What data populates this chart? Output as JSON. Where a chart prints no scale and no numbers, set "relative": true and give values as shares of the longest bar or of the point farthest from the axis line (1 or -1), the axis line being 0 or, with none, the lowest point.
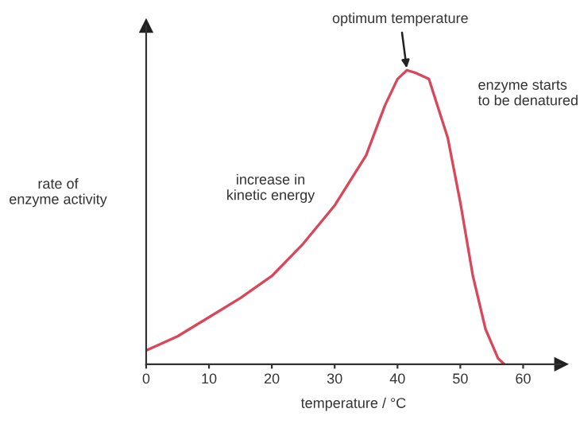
{
  "chart_data": {
    "type": "line",
    "relative": true,
    "xlabel": "temperature / °C",
    "ylabel": "rate of\nenzyme activity",
    "x": [
      0,
      5,
      10,
      15,
      20,
      25,
      30,
      35,
      38,
      40,
      41.5,
      43,
      45,
      46.5,
      48,
      50,
      52,
      54,
      56,
      57
    ],
    "series": [
      {
        "color": "#d9475a",
        "values": [
          0.047,
          0.095,
          0.16,
          0.225,
          0.3,
          0.41,
          0.54,
          0.71,
          0.88,
          0.97,
          1,
          0.99,
          0.97,
          0.87,
          0.77,
          0.55,
          0.3,
          0.12,
          0.02,
          0
        ]
      }
    ],
    "xlim": [
      0,
      66
    ],
    "xticks": [
      0,
      10,
      20,
      30,
      40,
      50,
      60
    ],
    "grid": false,
    "legend": false,
    "marker": "none",
    "line_style": "solid",
    "annotations": [
      {
        "text": "optimum temperature",
        "x": 41.5,
        "y": 1
      },
      "enzyme starts\nto be denatured",
      "increase in\nkinetic energy"
    ]
  }
}
